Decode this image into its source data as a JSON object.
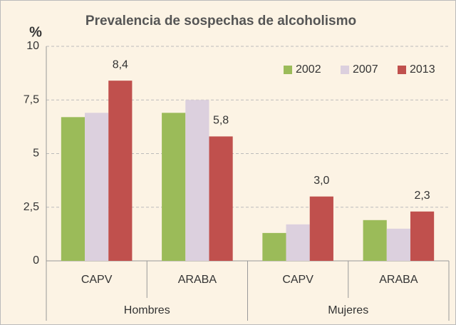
{
  "chart_data": {
    "type": "bar",
    "title": "Prevalencia de sospechas de alcoholismo",
    "y_label": "%",
    "categories": [
      "CAPV",
      "ARABA",
      "CAPV",
      "ARABA"
    ],
    "groups": [
      "Hombres",
      "Mujeres"
    ],
    "series": [
      {
        "name": "2002",
        "color": "#9bbb59",
        "values": [
          6.7,
          6.9,
          1.3,
          1.9
        ]
      },
      {
        "name": "2007",
        "color": "#dcd0de",
        "values": [
          6.9,
          7.5,
          1.7,
          1.5
        ]
      },
      {
        "name": "2013",
        "color": "#c0504d",
        "values": [
          8.4,
          5.8,
          3.0,
          2.3
        ],
        "value_labels": [
          "8,4",
          "5,8",
          "3,0",
          "2,3"
        ]
      }
    ],
    "ylim": [
      0,
      10
    ],
    "yticks": [
      0,
      {
        "value": 2.5,
        "label": "2,5"
      },
      5,
      {
        "value": 7.5,
        "label": "7,5"
      },
      10
    ],
    "grid": true,
    "legend": "top-right"
  }
}
